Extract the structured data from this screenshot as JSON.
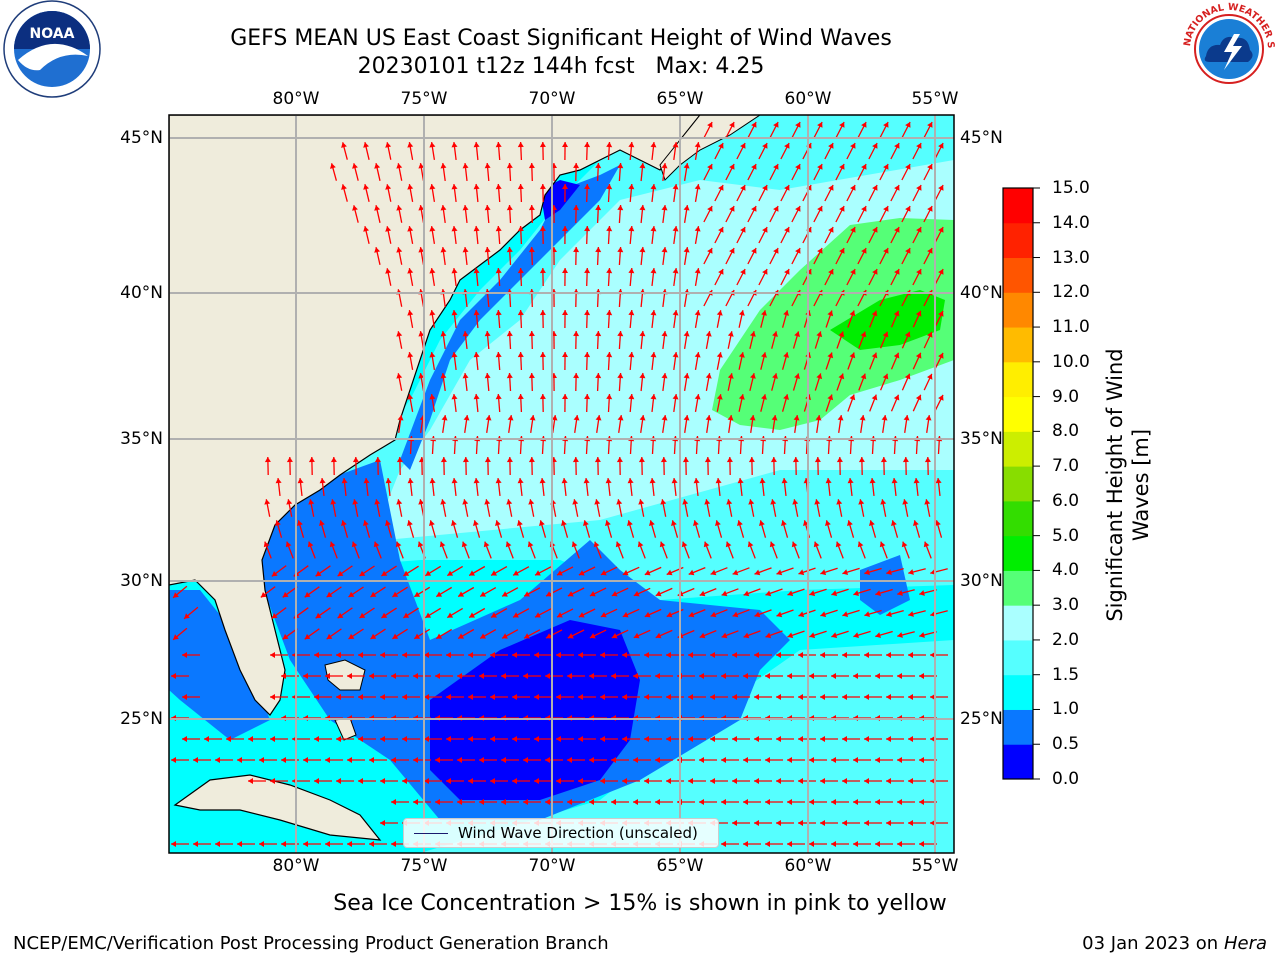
{
  "header": {
    "title_line1": "GEFS MEAN US East Coast Significant Height of Wind Waves",
    "title_line2": "20230101 t12z 144h fcst   Max: 4.25"
  },
  "map": {
    "lon_ticks_top": [
      "80°W",
      "75°W",
      "70°W",
      "65°W",
      "60°W",
      "55°W"
    ],
    "lon_ticks_bottom": [
      "80°W",
      "75°W",
      "70°W",
      "65°W",
      "60°W",
      "55°W"
    ],
    "lat_ticks_left": [
      "45°N",
      "40°N",
      "35°N",
      "30°N",
      "25°N"
    ],
    "lat_ticks_right": [
      "45°N",
      "40°N",
      "35°N",
      "30°N",
      "25°N"
    ],
    "legend_label": "Wind Wave Direction (unscaled)",
    "colors": {
      "land": "#efecdc",
      "gridline": "#b0b0b0",
      "arrow": "#ff0000"
    }
  },
  "colorbar": {
    "title": "Significant Height of Wind Waves [m]",
    "labels": [
      "0.0",
      "0.5",
      "1.0",
      "1.5",
      "2.0",
      "3.0",
      "4.0",
      "5.0",
      "6.0",
      "7.0",
      "8.0",
      "9.0",
      "10.0",
      "11.0",
      "12.0",
      "13.0",
      "14.0",
      "15.0"
    ],
    "colors": [
      "#0000ff",
      "#0a78ff",
      "#00ffff",
      "#55ffff",
      "#aaffff",
      "#55ff77",
      "#00ee00",
      "#33dd00",
      "#88dd00",
      "#ccee00",
      "#ffff00",
      "#ffee00",
      "#ffbb00",
      "#ff8800",
      "#ff5500",
      "#ff2200",
      "#ff0000"
    ]
  },
  "logos": {
    "noaa_text": "NOAA",
    "nws_text": "NATIONAL WEATHER SERVICE"
  },
  "notes": {
    "sea_ice": "Sea Ice Concentration > 15% is shown in pink to yellow"
  },
  "footer": {
    "left": "NCEP/EMC/Verification Post Processing Product Generation Branch",
    "right_date": "03 Jan 2023 on",
    "right_host": "Hera"
  }
}
